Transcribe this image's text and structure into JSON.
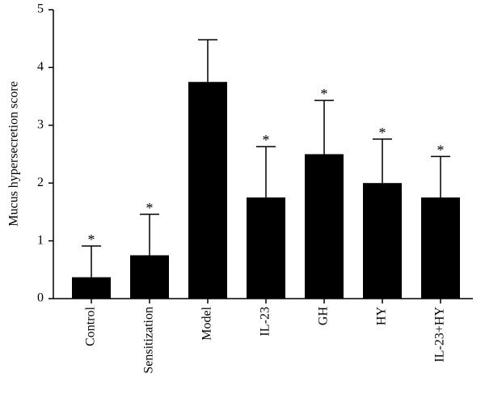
{
  "chart_data": {
    "type": "bar",
    "y_label": "Mucus hypersecretion score",
    "categories": [
      "Control",
      "Sensitization",
      "Model",
      "IL-23",
      "GH",
      "HY",
      "IL-23+HY"
    ],
    "values": [
      0.37,
      0.75,
      3.75,
      1.75,
      2.5,
      2.0,
      1.75
    ],
    "errors": [
      0.54,
      0.71,
      0.73,
      0.88,
      0.93,
      0.76,
      0.71
    ],
    "annotations": [
      "*",
      "*",
      null,
      "*",
      "*",
      "*",
      "*"
    ],
    "color": "#000000",
    "ylim": [
      0,
      5
    ],
    "yticks": [
      0,
      1,
      2,
      3,
      4,
      5
    ],
    "grid": false
  }
}
